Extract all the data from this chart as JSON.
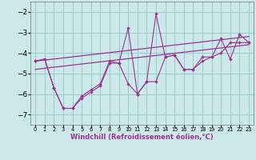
{
  "xlabel": "Windchill (Refroidissement éolien,°C)",
  "bg_color": "#cce8e8",
  "line_color": "#993399",
  "grid_color": "#99cccc",
  "x_data": [
    0,
    1,
    2,
    3,
    4,
    5,
    6,
    7,
    8,
    9,
    10,
    11,
    12,
    13,
    14,
    15,
    16,
    17,
    18,
    19,
    20,
    21,
    22,
    23
  ],
  "line_main": [
    -4.4,
    -4.3,
    -5.7,
    -6.7,
    -6.7,
    -6.2,
    -5.9,
    -5.6,
    -4.5,
    -4.5,
    -2.8,
    -6.0,
    -5.4,
    -2.1,
    -4.2,
    -4.1,
    -4.8,
    -4.8,
    -4.2,
    -4.2,
    -3.3,
    -4.3,
    -3.1,
    -3.5
  ],
  "line_upper": [
    [
      -4.4,
      0
    ],
    [
      -3.2,
      23
    ]
  ],
  "line_lower": [
    [
      -4.8,
      0
    ],
    [
      -3.6,
      23
    ]
  ],
  "line_second": [
    -4.4,
    -4.3,
    -5.7,
    -6.7,
    -6.7,
    -6.1,
    -5.8,
    -5.5,
    -4.4,
    -4.5,
    -5.5,
    -6.0,
    -5.4,
    -5.4,
    -4.2,
    -4.1,
    -4.8,
    -4.8,
    -4.4,
    -4.2,
    -4.0,
    -3.5,
    -3.5,
    -3.5
  ],
  "ylim": [
    -7.5,
    -1.5
  ],
  "xlim": [
    -0.5,
    23.5
  ],
  "yticks": [
    -7,
    -6,
    -5,
    -4,
    -3,
    -2
  ],
  "xticks": [
    0,
    1,
    2,
    3,
    4,
    5,
    6,
    7,
    8,
    9,
    10,
    11,
    12,
    13,
    14,
    15,
    16,
    17,
    18,
    19,
    20,
    21,
    22,
    23
  ]
}
